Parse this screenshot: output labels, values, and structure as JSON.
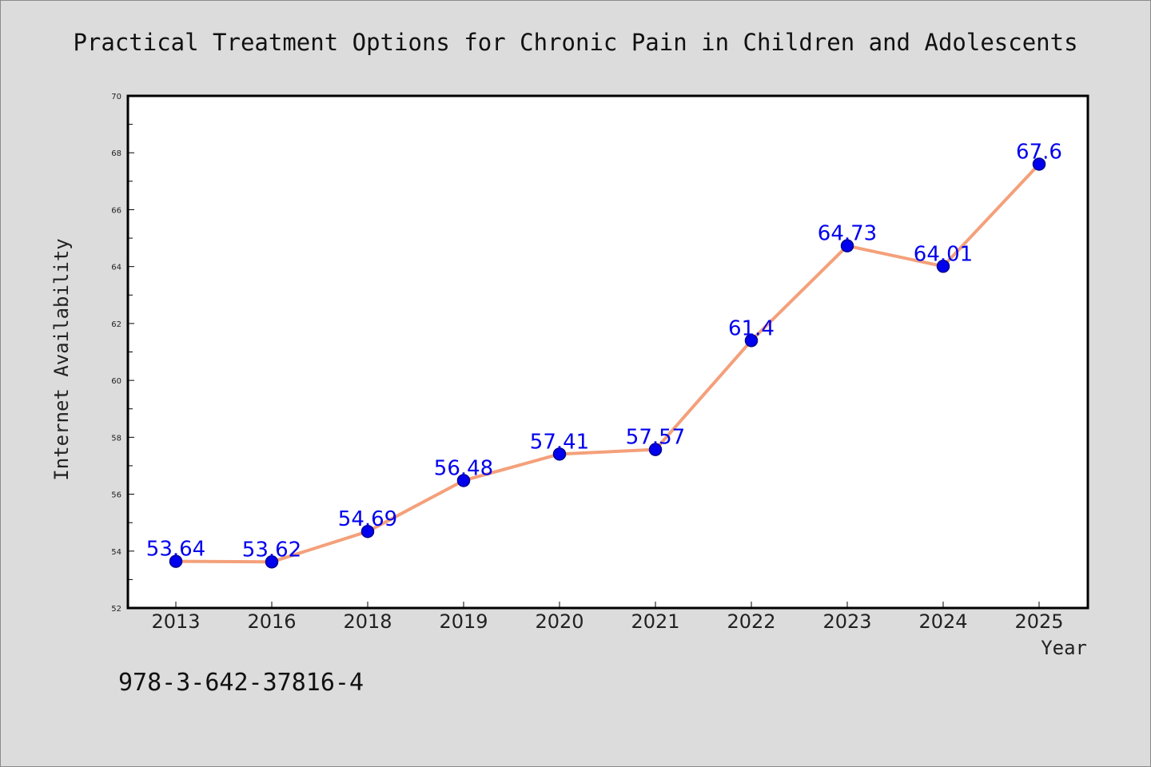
{
  "chart_data": {
    "type": "line",
    "title": "Practical Treatment Options for Chronic Pain in Children and Adolescents",
    "xlabel": "Year",
    "ylabel": "Internet Availability",
    "categories": [
      "2013",
      "2016",
      "2018",
      "2019",
      "2020",
      "2021",
      "2022",
      "2023",
      "2024",
      "2025"
    ],
    "values": [
      53.64,
      53.62,
      54.69,
      56.48,
      57.41,
      57.57,
      61.4,
      64.73,
      64.01,
      67.6
    ],
    "data_labels": [
      "53.64",
      "53.62",
      "54.69",
      "56.48",
      "57.41",
      "57.57",
      "61.4",
      "64.73",
      "64.01",
      "67.6"
    ],
    "ylim": [
      52,
      70
    ],
    "yticks": [
      52,
      54,
      56,
      58,
      60,
      62,
      64,
      66,
      68,
      70
    ],
    "grid": false,
    "legend": "none",
    "colors": {
      "line": "#f4a07a",
      "marker_fill": "#0000ee",
      "marker_edge": "#00008b",
      "data_label": "#0000ee",
      "background": "#dcdcdc",
      "plot_background": "#ffffff"
    }
  },
  "footer_text": "978-3-642-37816-4"
}
